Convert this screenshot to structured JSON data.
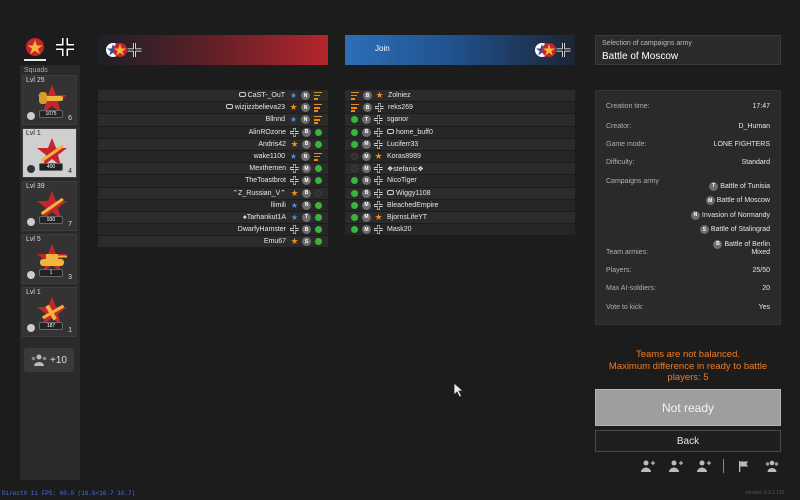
{
  "squads": {
    "label": "Squads",
    "cards": [
      {
        "level": "Lvl 25",
        "exp": "1075",
        "count": "6",
        "weapon": "flamethrower-icon",
        "class": "assault-icon"
      },
      {
        "level": "Lvl 1",
        "exp": "400",
        "count": "4",
        "weapon": "rifle-icon",
        "class": "soldier-icon"
      },
      {
        "level": "Lvl 39",
        "exp": "930",
        "count": "7",
        "weapon": "rifle-icon",
        "class": "list-icon"
      },
      {
        "level": "Lvl 5",
        "exp": "1",
        "count": "3",
        "weapon": "tank-icon",
        "class": "tank-crew-icon"
      },
      {
        "level": "Lvl 1",
        "exp": "187",
        "count": "1",
        "weapon": "plane-icon",
        "class": "pilot-icon"
      }
    ],
    "more": "+10"
  },
  "join_label": "Join",
  "left_team": [
    {
      "name": "CaST-_OuT",
      "rank": "blue-star",
      "camp": "N",
      "status": "leader",
      "ctrl": true
    },
    {
      "name": "wizjizzbelieva23",
      "rank": "orange-star",
      "camp": "N",
      "status": "leader",
      "ctrl": true
    },
    {
      "name": "Bllnnd",
      "rank": "blue-star",
      "camp": "N",
      "status": "leader",
      "ctrl": false
    },
    {
      "name": "AlinROzone",
      "rank": "iron-cross",
      "camp": "B",
      "status": "ready",
      "ctrl": false
    },
    {
      "name": "Andris42",
      "rank": "orange-star",
      "camp": "B",
      "status": "ready",
      "ctrl": false
    },
    {
      "name": "wake1100",
      "rank": "blue-star",
      "camp": "N",
      "status": "leader",
      "ctrl": false
    },
    {
      "name": "Mexthemen",
      "rank": "iron-cross",
      "camp": "M",
      "status": "ready",
      "ctrl": false
    },
    {
      "name": "TheToastbrot",
      "rank": "iron-cross",
      "camp": "M",
      "status": "ready",
      "ctrl": false
    },
    {
      "name": "⌃Z_Russian_V⌃",
      "rank": "orange-star",
      "camp": "B",
      "status": "off",
      "ctrl": false
    },
    {
      "name": "llimili",
      "rank": "blue-star",
      "camp": "N",
      "status": "ready",
      "ctrl": false
    },
    {
      "name": "♠Tarhankut1A",
      "rank": "blue-star",
      "camp": "T",
      "status": "ready",
      "ctrl": false
    },
    {
      "name": "DwarfyHamster",
      "rank": "iron-cross",
      "camp": "B",
      "status": "ready",
      "ctrl": false
    },
    {
      "name": "Emu67",
      "rank": "orange-star",
      "camp": "S",
      "status": "ready",
      "ctrl": false
    }
  ],
  "right_team": [
    {
      "name": "Zolniez",
      "rank": "orange-star",
      "camp": "B",
      "status": "leader",
      "ctrl": false
    },
    {
      "name": "reks269",
      "rank": "iron-cross",
      "camp": "B",
      "status": "leader",
      "ctrl": false
    },
    {
      "name": "sganor",
      "rank": "iron-cross",
      "camp": "T",
      "status": "ready",
      "ctrl": false
    },
    {
      "name": "home_buff0",
      "rank": "iron-cross",
      "camp": "B",
      "status": "ready",
      "ctrl": true
    },
    {
      "name": "Luciferr33",
      "rank": "iron-cross",
      "camp": "M",
      "status": "ready",
      "ctrl": false
    },
    {
      "name": "Koras8989",
      "rank": "orange-star",
      "camp": "M",
      "status": "off",
      "ctrl": false
    },
    {
      "name": "❖stefanic❖",
      "rank": "iron-cross",
      "camp": "M",
      "status": "off",
      "ctrl": false
    },
    {
      "name": "NicoTiger",
      "rank": "iron-cross",
      "camp": "N",
      "status": "ready",
      "ctrl": false
    },
    {
      "name": "Wiggy1108",
      "rank": "iron-cross",
      "camp": "B",
      "status": "ready",
      "ctrl": true
    },
    {
      "name": "BleachedEmpire",
      "rank": "iron-cross",
      "camp": "M",
      "status": "ready",
      "ctrl": false
    },
    {
      "name": "BjornsLifeYT",
      "rank": "orange-star",
      "camp": "M",
      "status": "ready",
      "ctrl": false
    },
    {
      "name": "Mask20",
      "rank": "iron-cross",
      "camp": "M",
      "status": "ready",
      "ctrl": false
    }
  ],
  "army": {
    "subtitle": "Selection of campaigns army",
    "title": "Battle of Moscow"
  },
  "info": {
    "creation_time_label": "Creation time:",
    "creation_time": "17:47",
    "creator_label": "Creator:",
    "creator": "D_Human",
    "game_mode_label": "Game mode:",
    "game_mode": "LONE FIGHTERS",
    "difficulty_label": "Difficulty:",
    "difficulty": "Standard",
    "campaigns_label": "Campaigns army",
    "campaigns": [
      {
        "letter": "T",
        "name": "Battle of Tunisia"
      },
      {
        "letter": "M",
        "name": "Battle of Moscow"
      },
      {
        "letter": "N",
        "name": "Invasion of Normandy"
      },
      {
        "letter": "S",
        "name": "Battle of Stalingrad"
      },
      {
        "letter": "B",
        "name": "Battle of Berlin"
      }
    ],
    "team_armies_label": "Team armies:",
    "team_armies": "Mixed",
    "players_label": "Players:",
    "players": "25/50",
    "max_ai_label": "Max AI-soldiers:",
    "max_ai": "20",
    "vote_kick_label": "Vote to kick:",
    "vote_kick": "Yes"
  },
  "warning": {
    "line1": "Teams are not balanced.",
    "line2": "Maximum difference in ready to battle",
    "line3": "players: 5"
  },
  "buttons": {
    "not_ready": "Not ready",
    "back": "Back"
  },
  "bottom_icons": [
    "add-friend-icon",
    "add-friend-icon",
    "add-friend-icon",
    "flag-icon",
    "group-icon"
  ],
  "fps": "DirectX 11 FPS: 60.0 (16.6<16.7 16.7)",
  "version": "version: 0.3.1.115",
  "colors": {
    "ready": "#39b53d",
    "leader": "#e88a18",
    "warning": "#f07c22",
    "red_team": "#b5252c",
    "blue_team": "#2d6fb8"
  }
}
